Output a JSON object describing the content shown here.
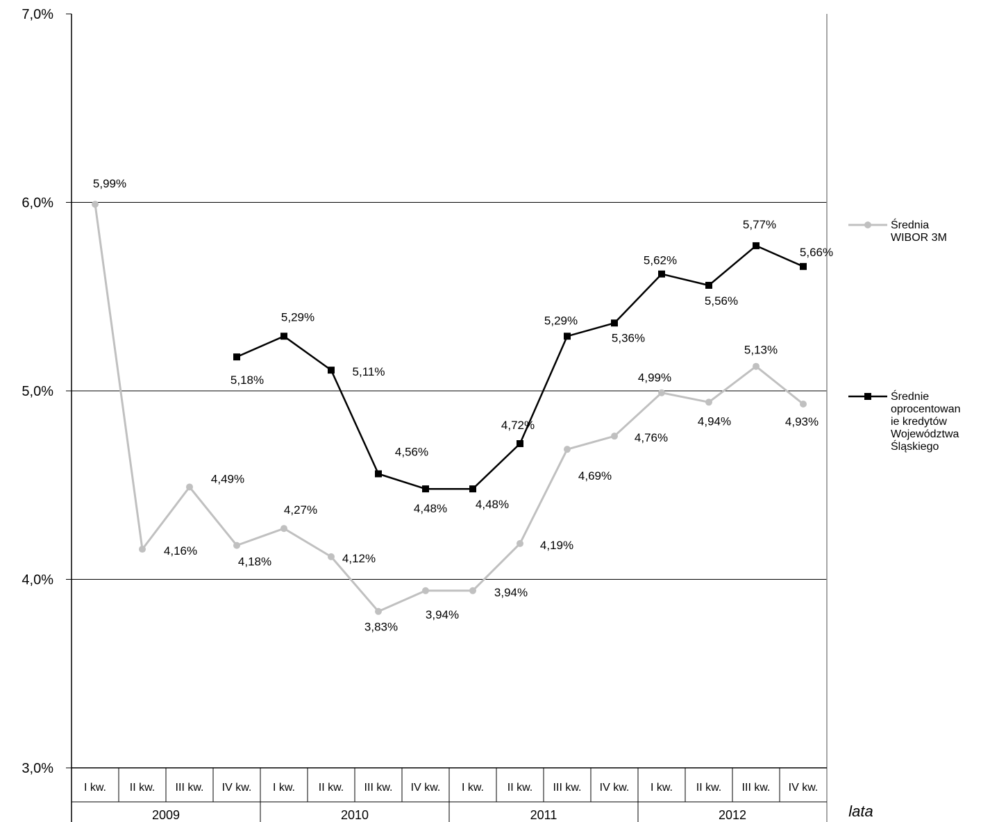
{
  "chart_data": {
    "type": "line",
    "title": "",
    "xlabel": "lata",
    "ylabel": "",
    "ylim": [
      3.0,
      7.0
    ],
    "y_ticks": [
      "3,0%",
      "4,0%",
      "5,0%",
      "6,0%",
      "7,0%"
    ],
    "grid": "horizontal",
    "legend_position": "right",
    "categories": [
      "I kw.",
      "II kw.",
      "III kw.",
      "IV kw.",
      "I kw.",
      "II kw.",
      "III kw.",
      "IV kw.",
      "I kw.",
      "II kw.",
      "III kw.",
      "IV kw.",
      "I kw.",
      "II kw.",
      "III kw.",
      "IV kw."
    ],
    "years": [
      "2009",
      "2010",
      "2011",
      "2012"
    ],
    "series": [
      {
        "name": "Średnia WIBOR 3M",
        "legend_lines": [
          "Średnia",
          "WIBOR 3M"
        ],
        "color": "#c0c0c0",
        "marker": "circle",
        "values": [
          5.99,
          4.16,
          4.49,
          4.18,
          4.27,
          4.12,
          3.83,
          3.94,
          3.94,
          4.19,
          4.69,
          4.76,
          4.99,
          4.94,
          5.13,
          4.93
        ],
        "labels": [
          "5,99%",
          "4,16%",
          "4,49%",
          "4,18%",
          "4,27%",
          "4,12%",
          "3,83%",
          "3,94%",
          "3,94%",
          "4,19%",
          "4,69%",
          "4,76%",
          "4,99%",
          "4,94%",
          "5,13%",
          "4,93%"
        ]
      },
      {
        "name": "Średnie oprocentowanie kredytów Województwa Śląskiego",
        "legend_lines": [
          "Średnie",
          "oprocentowan",
          "ie kredytów",
          "Województwa",
          "Śląskiego"
        ],
        "color": "#000000",
        "marker": "square",
        "values": [
          null,
          null,
          null,
          5.18,
          5.29,
          5.11,
          4.56,
          4.48,
          4.48,
          4.72,
          5.29,
          5.36,
          5.62,
          5.56,
          5.77,
          5.66
        ],
        "labels": [
          null,
          null,
          null,
          "5,18%",
          "5,29%",
          "5,11%",
          "4,56%",
          "4,48%",
          "4,48%",
          "4,72%",
          "5,29%",
          "5,36%",
          "5,62%",
          "5,56%",
          "5,77%",
          "5,66%"
        ]
      }
    ]
  }
}
